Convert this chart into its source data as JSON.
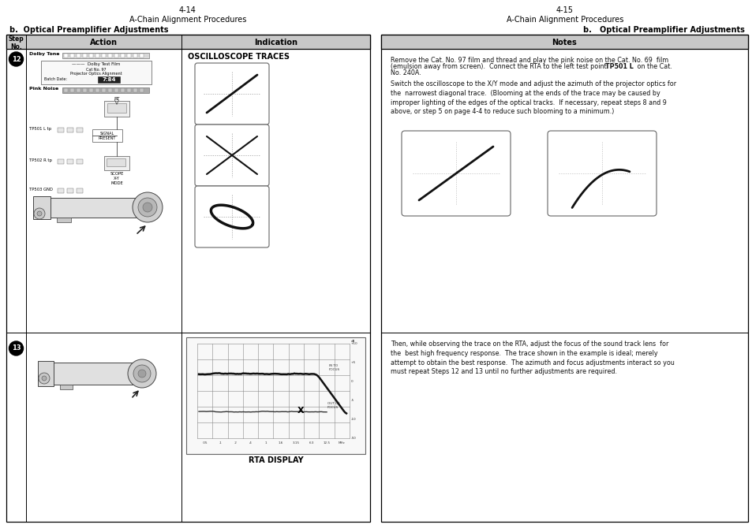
{
  "page_left_num": "4-14",
  "page_right_num": "4-15",
  "title": "A-Chain Alignment Procedures",
  "subtitle_left": "b.  Optical Preamplifier Adjustments",
  "subtitle_right": "b.   Optical Preamplifier Adjustments",
  "col_header_step": "Step\nNo.",
  "col_header_action": "Action",
  "col_header_indication": "Indication",
  "col_header_notes": "Notes",
  "osc_title": "OSCILLOSCOPE TRACES",
  "rta_title": "RTA DISPLAY",
  "freq_labels": [
    ".05",
    ".1",
    ".2",
    ".4",
    "1",
    "1.6",
    "3.15",
    "6.3",
    "12.5",
    "MHz"
  ],
  "db_labels_top": [
    "+10",
    "+5"
  ],
  "db_labels_mid": [
    "0"
  ],
  "db_labels_bot": [
    "-5",
    "-10",
    "-50"
  ],
  "notes_p1": "Remove the Cat. No. 97 film and thread and play the pink noise on the Cat. No. 69  film\n(emulsion away from screen).  Connect the RTA to the left test point TP501 L on the Cat.\nNo. 240A.",
  "notes_p1_bold": "TP501 L",
  "notes_p2": "Switch the oscilloscope to the X/Y mode and adjust the azimuth of the projector optics for\nthe  narrowest diagonal trace.  (Blooming at the ends of the trace may be caused by\nimproper lighting of the edges of the optical tracks.  If necessary, repeat steps 8 and 9\nabove, or step 5 on page 4-4 to reduce such blooming to a minimum.)",
  "notes_p3": "Then, while observing the trace on the RTA, adjust the focus of the sound track lens  for\nthe  best high frequency response.  The trace shown in the example is ideal; merely\nattempt to obtain the best response.  The azimuth and focus adjustments interact so you\nmust repeat Steps 12 and 13 until no further adjustments are required.",
  "bg_color": "#ffffff",
  "header_bg": "#c8c8c8",
  "border_color": "#000000"
}
